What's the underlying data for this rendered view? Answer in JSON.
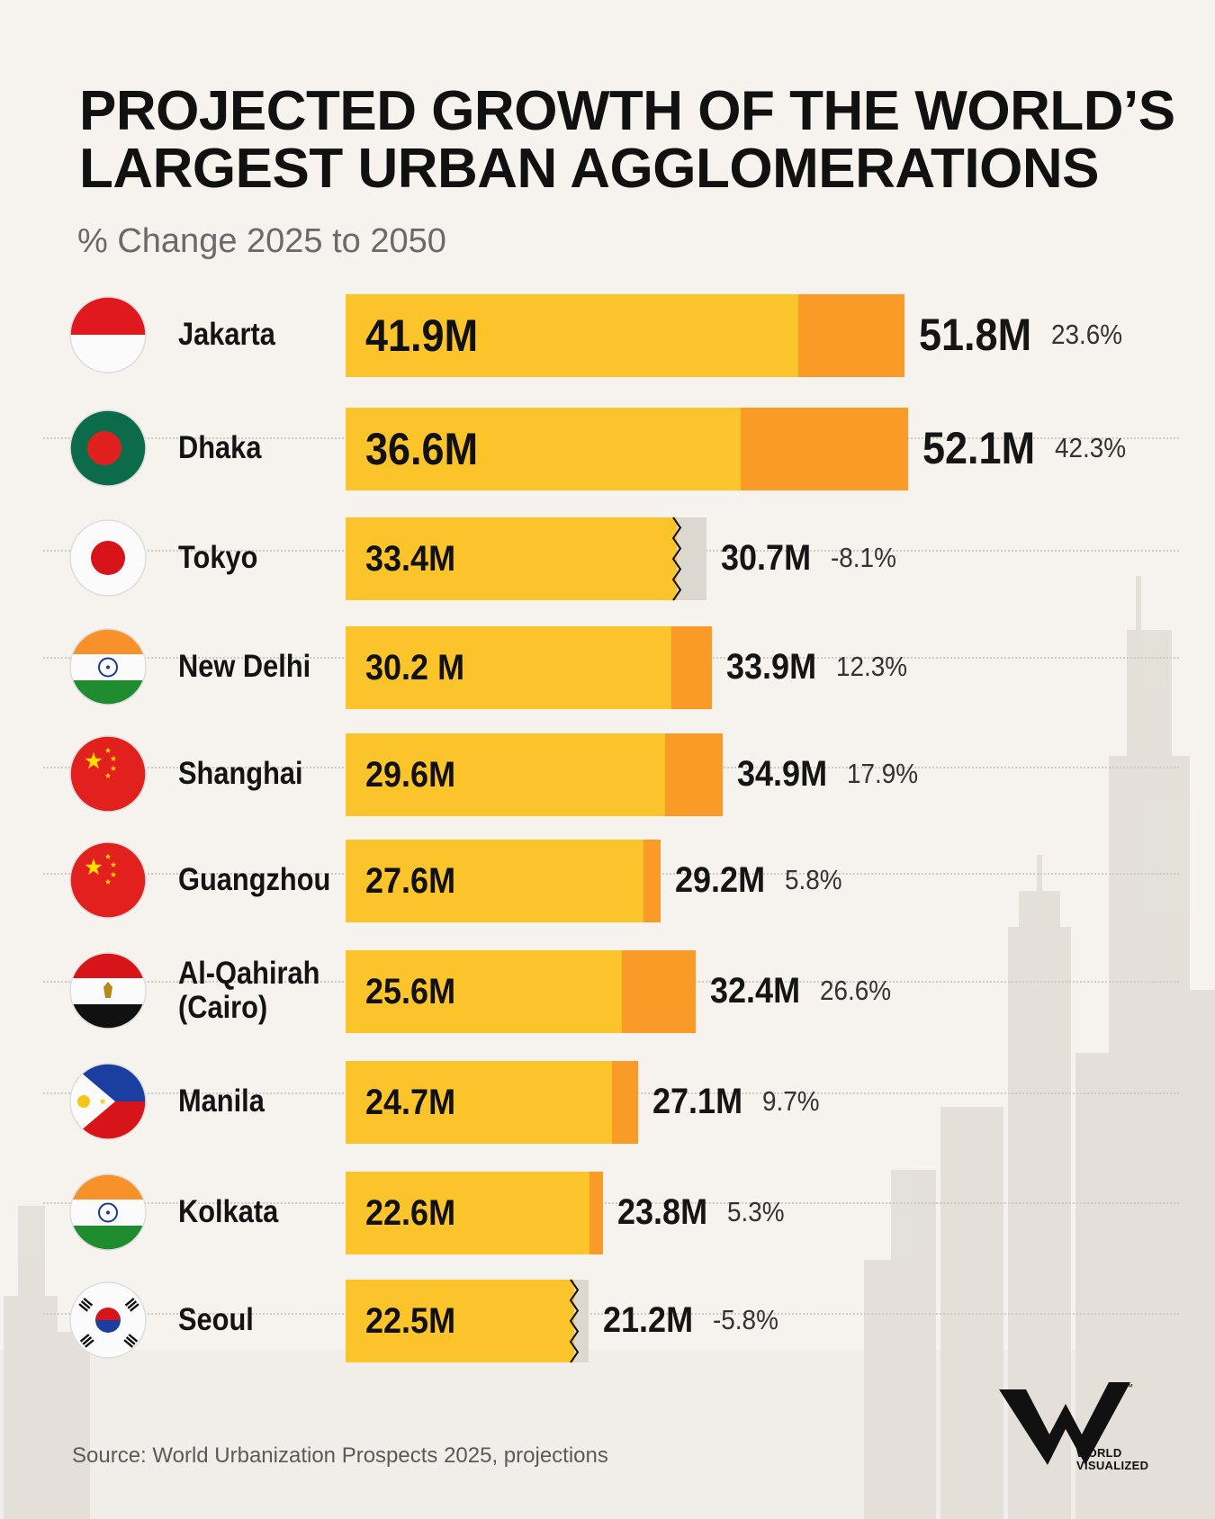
{
  "title_lines": [
    "PROJECTED GROWTH OF THE WORLD’S",
    "LARGEST URBAN AGGLOMERATIONS"
  ],
  "subtitle": "% Change 2025 to 2050",
  "source": "Source: World Urbanization Prospects 2025, projections",
  "logo": {
    "line1": "WORLD",
    "line2": "VISUALIZED",
    "tm": "™"
  },
  "colors": {
    "base": "#fbc42a",
    "growth": "#fb9b27",
    "decline": "#dcd8d0",
    "background": "#f6f3ee"
  },
  "chart_data": {
    "type": "bar",
    "orientation": "horizontal",
    "title": "PROJECTED GROWTH OF THE WORLD’S LARGEST URBAN AGGLOMERATIONS",
    "subtitle": "% Change 2025 to 2050",
    "unit": "M",
    "rows": [
      {
        "city": [
          "Jakarta"
        ],
        "flag": "indonesia-flag-icon",
        "v2025": 41.9,
        "v2050": 51.8,
        "label2025": "41.9M",
        "label2050": "51.8M",
        "change": "23.6%",
        "size": "xl"
      },
      {
        "city": [
          "Dhaka"
        ],
        "flag": "bangladesh-flag-icon",
        "v2025": 36.6,
        "v2050": 52.1,
        "label2025": "36.6M",
        "label2050": "52.1M",
        "change": "42.3%",
        "size": "xl"
      },
      {
        "city": [
          "Tokyo"
        ],
        "flag": "japan-flag-icon",
        "v2025": 33.4,
        "v2050": 30.7,
        "label2025": "33.4M",
        "label2050": "30.7M",
        "change": "-8.1%",
        "size": "md"
      },
      {
        "city": [
          "New Delhi"
        ],
        "flag": "india-flag-icon",
        "v2025": 30.2,
        "v2050": 33.9,
        "label2025": "30.2 M",
        "label2050": "33.9M",
        "change": "12.3%",
        "size": "md"
      },
      {
        "city": [
          "Shanghai"
        ],
        "flag": "china-flag-icon",
        "v2025": 29.6,
        "v2050": 34.9,
        "label2025": "29.6M",
        "label2050": "34.9M",
        "change": "17.9%",
        "size": "md"
      },
      {
        "city": [
          "Guangzhou"
        ],
        "flag": "china-flag-icon",
        "v2025": 27.6,
        "v2050": 29.2,
        "label2025": "27.6M",
        "label2050": "29.2M",
        "change": "5.8%",
        "size": "md"
      },
      {
        "city": [
          "Al-Qahirah",
          "(Cairo)"
        ],
        "flag": "egypt-flag-icon",
        "v2025": 25.6,
        "v2050": 32.4,
        "label2025": "25.6M",
        "label2050": "32.4M",
        "change": "26.6%",
        "size": "md"
      },
      {
        "city": [
          "Manila"
        ],
        "flag": "philippines-flag-icon",
        "v2025": 24.7,
        "v2050": 27.1,
        "label2025": "24.7M",
        "label2050": "27.1M",
        "change": "9.7%",
        "size": "md"
      },
      {
        "city": [
          "Kolkata"
        ],
        "flag": "india-flag-icon",
        "v2025": 22.6,
        "v2050": 23.8,
        "label2025": "22.6M",
        "label2050": "23.8M",
        "change": "5.3%",
        "size": "md"
      },
      {
        "city": [
          "Seoul"
        ],
        "flag": "south-korea-flag-icon",
        "v2025": 22.5,
        "v2050": 21.2,
        "label2025": "22.5M",
        "label2050": "21.2M",
        "change": "-5.8%",
        "size": "md"
      }
    ]
  }
}
